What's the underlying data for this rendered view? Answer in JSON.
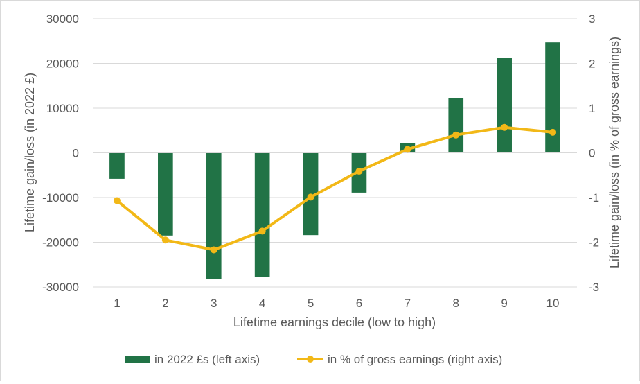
{
  "chart_data": {
    "type": "bar+line",
    "categories": [
      "1",
      "2",
      "3",
      "4",
      "5",
      "6",
      "7",
      "8",
      "9",
      "10"
    ],
    "xlabel": "Lifetime earnings decile (low to high)",
    "ylabel_left": "Lifetime gain/loss (in 2022 £)",
    "ylabel_right": "Lifetime gain/loss (in % of gross earnings)",
    "ylim_left": [
      -30000,
      30000
    ],
    "ylim_right": [
      -3,
      3
    ],
    "yticks_left": [
      "30000",
      "20000",
      "10000",
      "0",
      "-10000",
      "-20000",
      "-30000"
    ],
    "yticks_right": [
      "3",
      "2",
      "1",
      "0",
      "-1",
      "-2",
      "-3"
    ],
    "grid": "horizontal",
    "legend_position": "bottom",
    "series": [
      {
        "name": "in 2022 £s (left axis)",
        "type": "bar",
        "axis": "left",
        "color": "#217346",
        "values": [
          -5800,
          -18500,
          -28200,
          -27800,
          -18400,
          -8900,
          2100,
          12200,
          21200,
          24700
        ]
      },
      {
        "name": "in % of gross earnings (right axis)",
        "type": "line",
        "axis": "right",
        "color": "#f2b817",
        "values": [
          -1.07,
          -1.95,
          -2.17,
          -1.75,
          -0.99,
          -0.41,
          0.08,
          0.4,
          0.57,
          0.46
        ]
      }
    ]
  }
}
